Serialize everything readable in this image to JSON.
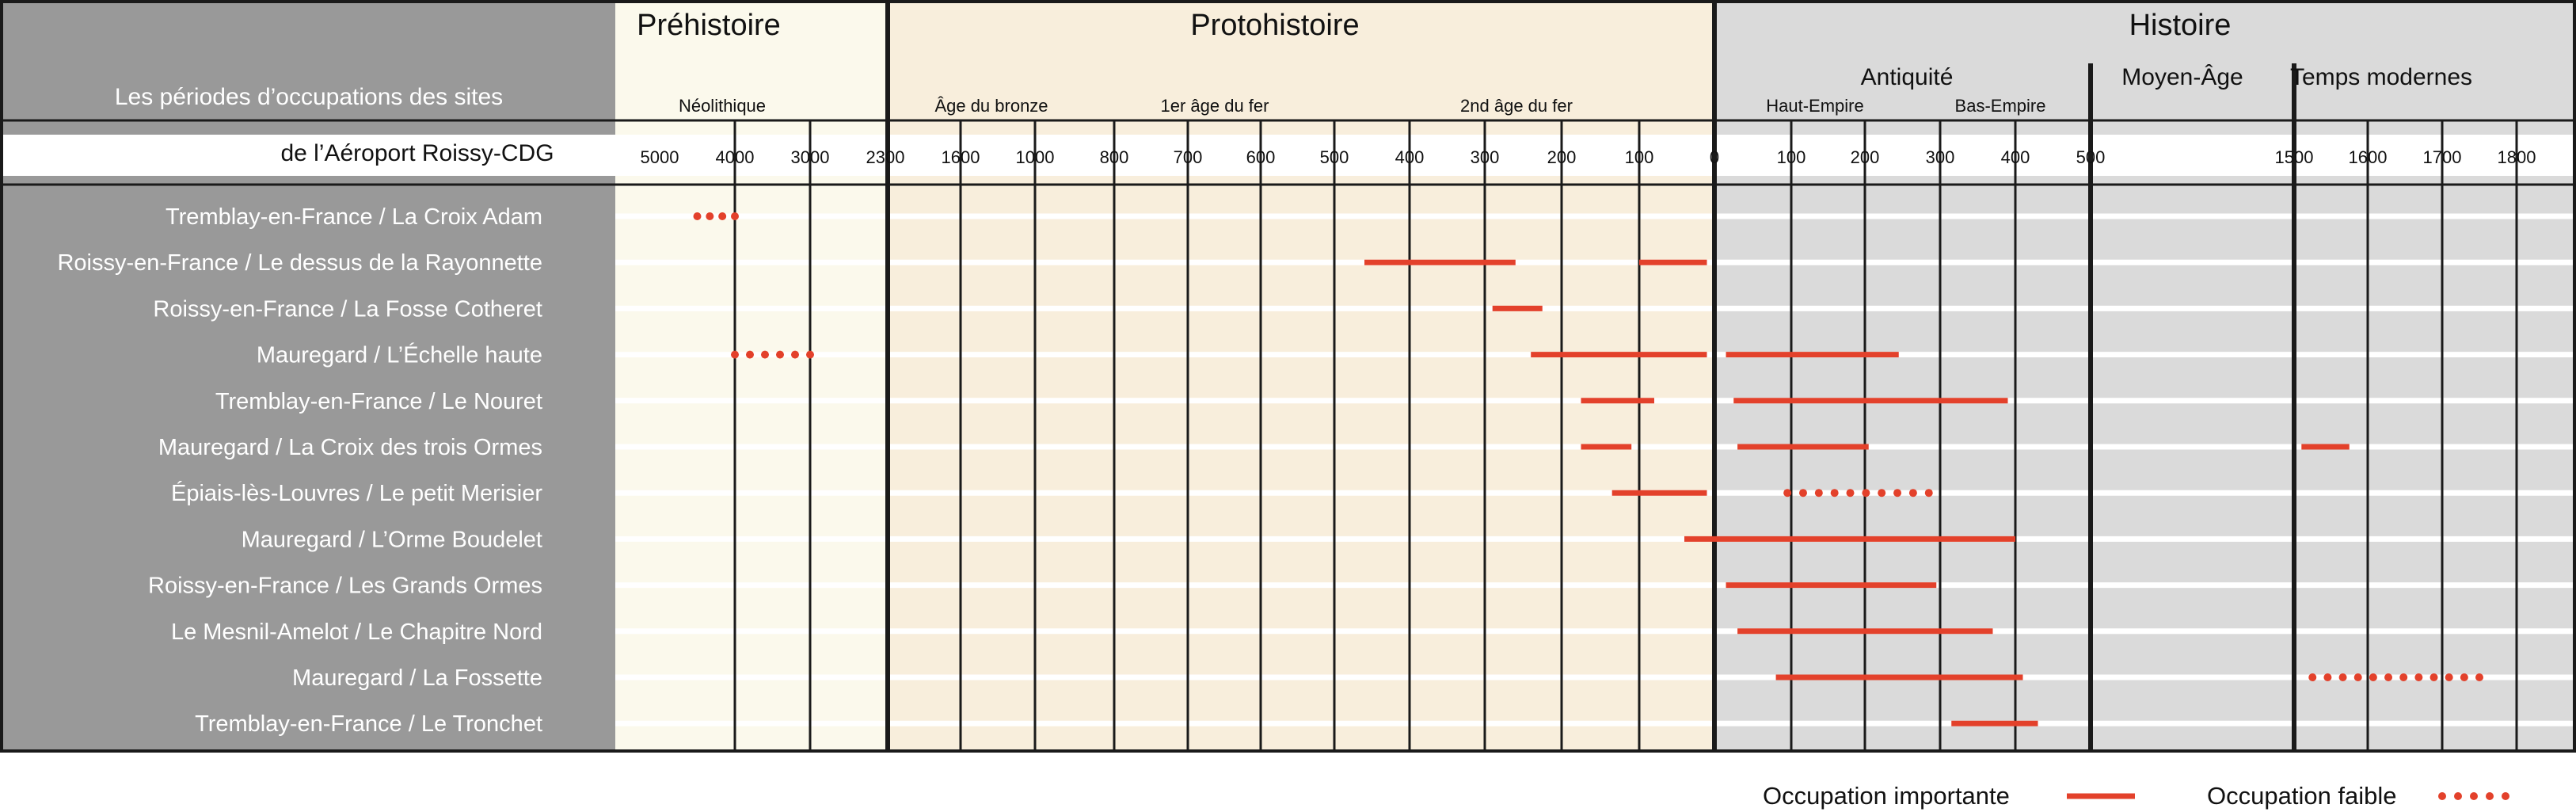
{
  "chart_data": {
    "type": "timeline",
    "title_line1": "Les périodes d’occupations des sites",
    "title_line2": "de l’Aéroport Roissy-CDG",
    "colors": {
      "label_panel": "#999999",
      "prehistoire_bg": "#fbf9ec",
      "protohistoire_bg": "#f8eedc",
      "histoire_bg": "#dadada",
      "bar": "#e3412b",
      "frame": "#1a1a1a"
    },
    "eras": [
      {
        "name": "Préhistoire"
      },
      {
        "name": "Protohistoire"
      },
      {
        "name": "Histoire"
      }
    ],
    "suberas": [
      {
        "name": "Antiquité"
      },
      {
        "name": "Moyen-Âge"
      },
      {
        "name": "Temps modernes"
      }
    ],
    "periods": [
      {
        "name": "Néolithique"
      },
      {
        "name": "Âge du bronze"
      },
      {
        "name": "1er âge du fer"
      },
      {
        "name": "2nd âge du fer"
      },
      {
        "name": "Haut-Empire"
      },
      {
        "name": "Bas-Empire"
      }
    ],
    "ticks": [
      "5000",
      "4000",
      "3000",
      "2300",
      "1600",
      "1000",
      "800",
      "700",
      "600",
      "500",
      "400",
      "300",
      "200",
      "100",
      "0",
      "100",
      "200",
      "300",
      "400",
      "500",
      "1500",
      "1600",
      "1700",
      "1800"
    ],
    "rows": [
      {
        "label": "Tremblay-en-France / La Croix Adam",
        "segments": [
          {
            "start": -4500,
            "end": -4000,
            "style": "weak"
          }
        ]
      },
      {
        "label": "Roissy-en-France / Le dessus de la Rayonnette",
        "segments": [
          {
            "start": -460,
            "end": -260,
            "style": "strong"
          },
          {
            "start": -100,
            "end": -10,
            "style": "strong"
          }
        ]
      },
      {
        "label": "Roissy-en-France / La Fosse Cotheret",
        "segments": [
          {
            "start": -290,
            "end": -225,
            "style": "strong"
          }
        ]
      },
      {
        "label": "Mauregard / L’Échelle haute",
        "segments": [
          {
            "start": -4000,
            "end": -3000,
            "style": "weak"
          },
          {
            "start": -240,
            "end": -10,
            "style": "strong"
          },
          {
            "start": 15,
            "end": 245,
            "style": "strong"
          }
        ]
      },
      {
        "label": "Tremblay-en-France / Le Nouret",
        "segments": [
          {
            "start": -175,
            "end": -80,
            "style": "strong"
          },
          {
            "start": 25,
            "end": 390,
            "style": "strong"
          }
        ]
      },
      {
        "label": "Mauregard / La Croix des trois Ormes",
        "segments": [
          {
            "start": -175,
            "end": -110,
            "style": "strong"
          },
          {
            "start": 30,
            "end": 205,
            "style": "strong"
          },
          {
            "start": 1510,
            "end": 1575,
            "style": "strong"
          }
        ]
      },
      {
        "label": "Épiais-lès-Louvres / Le petit Merisier",
        "segments": [
          {
            "start": -135,
            "end": -10,
            "style": "strong"
          },
          {
            "start": 95,
            "end": 285,
            "style": "weak"
          }
        ]
      },
      {
        "label": "Mauregard / L’Orme Boudelet",
        "segments": [
          {
            "start": -40,
            "end": 400,
            "style": "strong"
          }
        ]
      },
      {
        "label": "Roissy-en-France / Les Grands Ormes",
        "segments": [
          {
            "start": 15,
            "end": 295,
            "style": "strong"
          }
        ]
      },
      {
        "label": "Le Mesnil-Amelot / Le Chapitre Nord",
        "segments": [
          {
            "start": 30,
            "end": 370,
            "style": "strong"
          }
        ]
      },
      {
        "label": "Mauregard / La Fossette",
        "segments": [
          {
            "start": 80,
            "end": 410,
            "style": "strong"
          },
          {
            "start": 1525,
            "end": 1750,
            "style": "weak"
          }
        ]
      },
      {
        "label": "Tremblay-en-France / Le Tronchet",
        "segments": [
          {
            "start": 315,
            "end": 430,
            "style": "strong"
          }
        ]
      }
    ],
    "legend": {
      "strong_label": "Occupation importante",
      "weak_label": "Occupation faible"
    }
  }
}
